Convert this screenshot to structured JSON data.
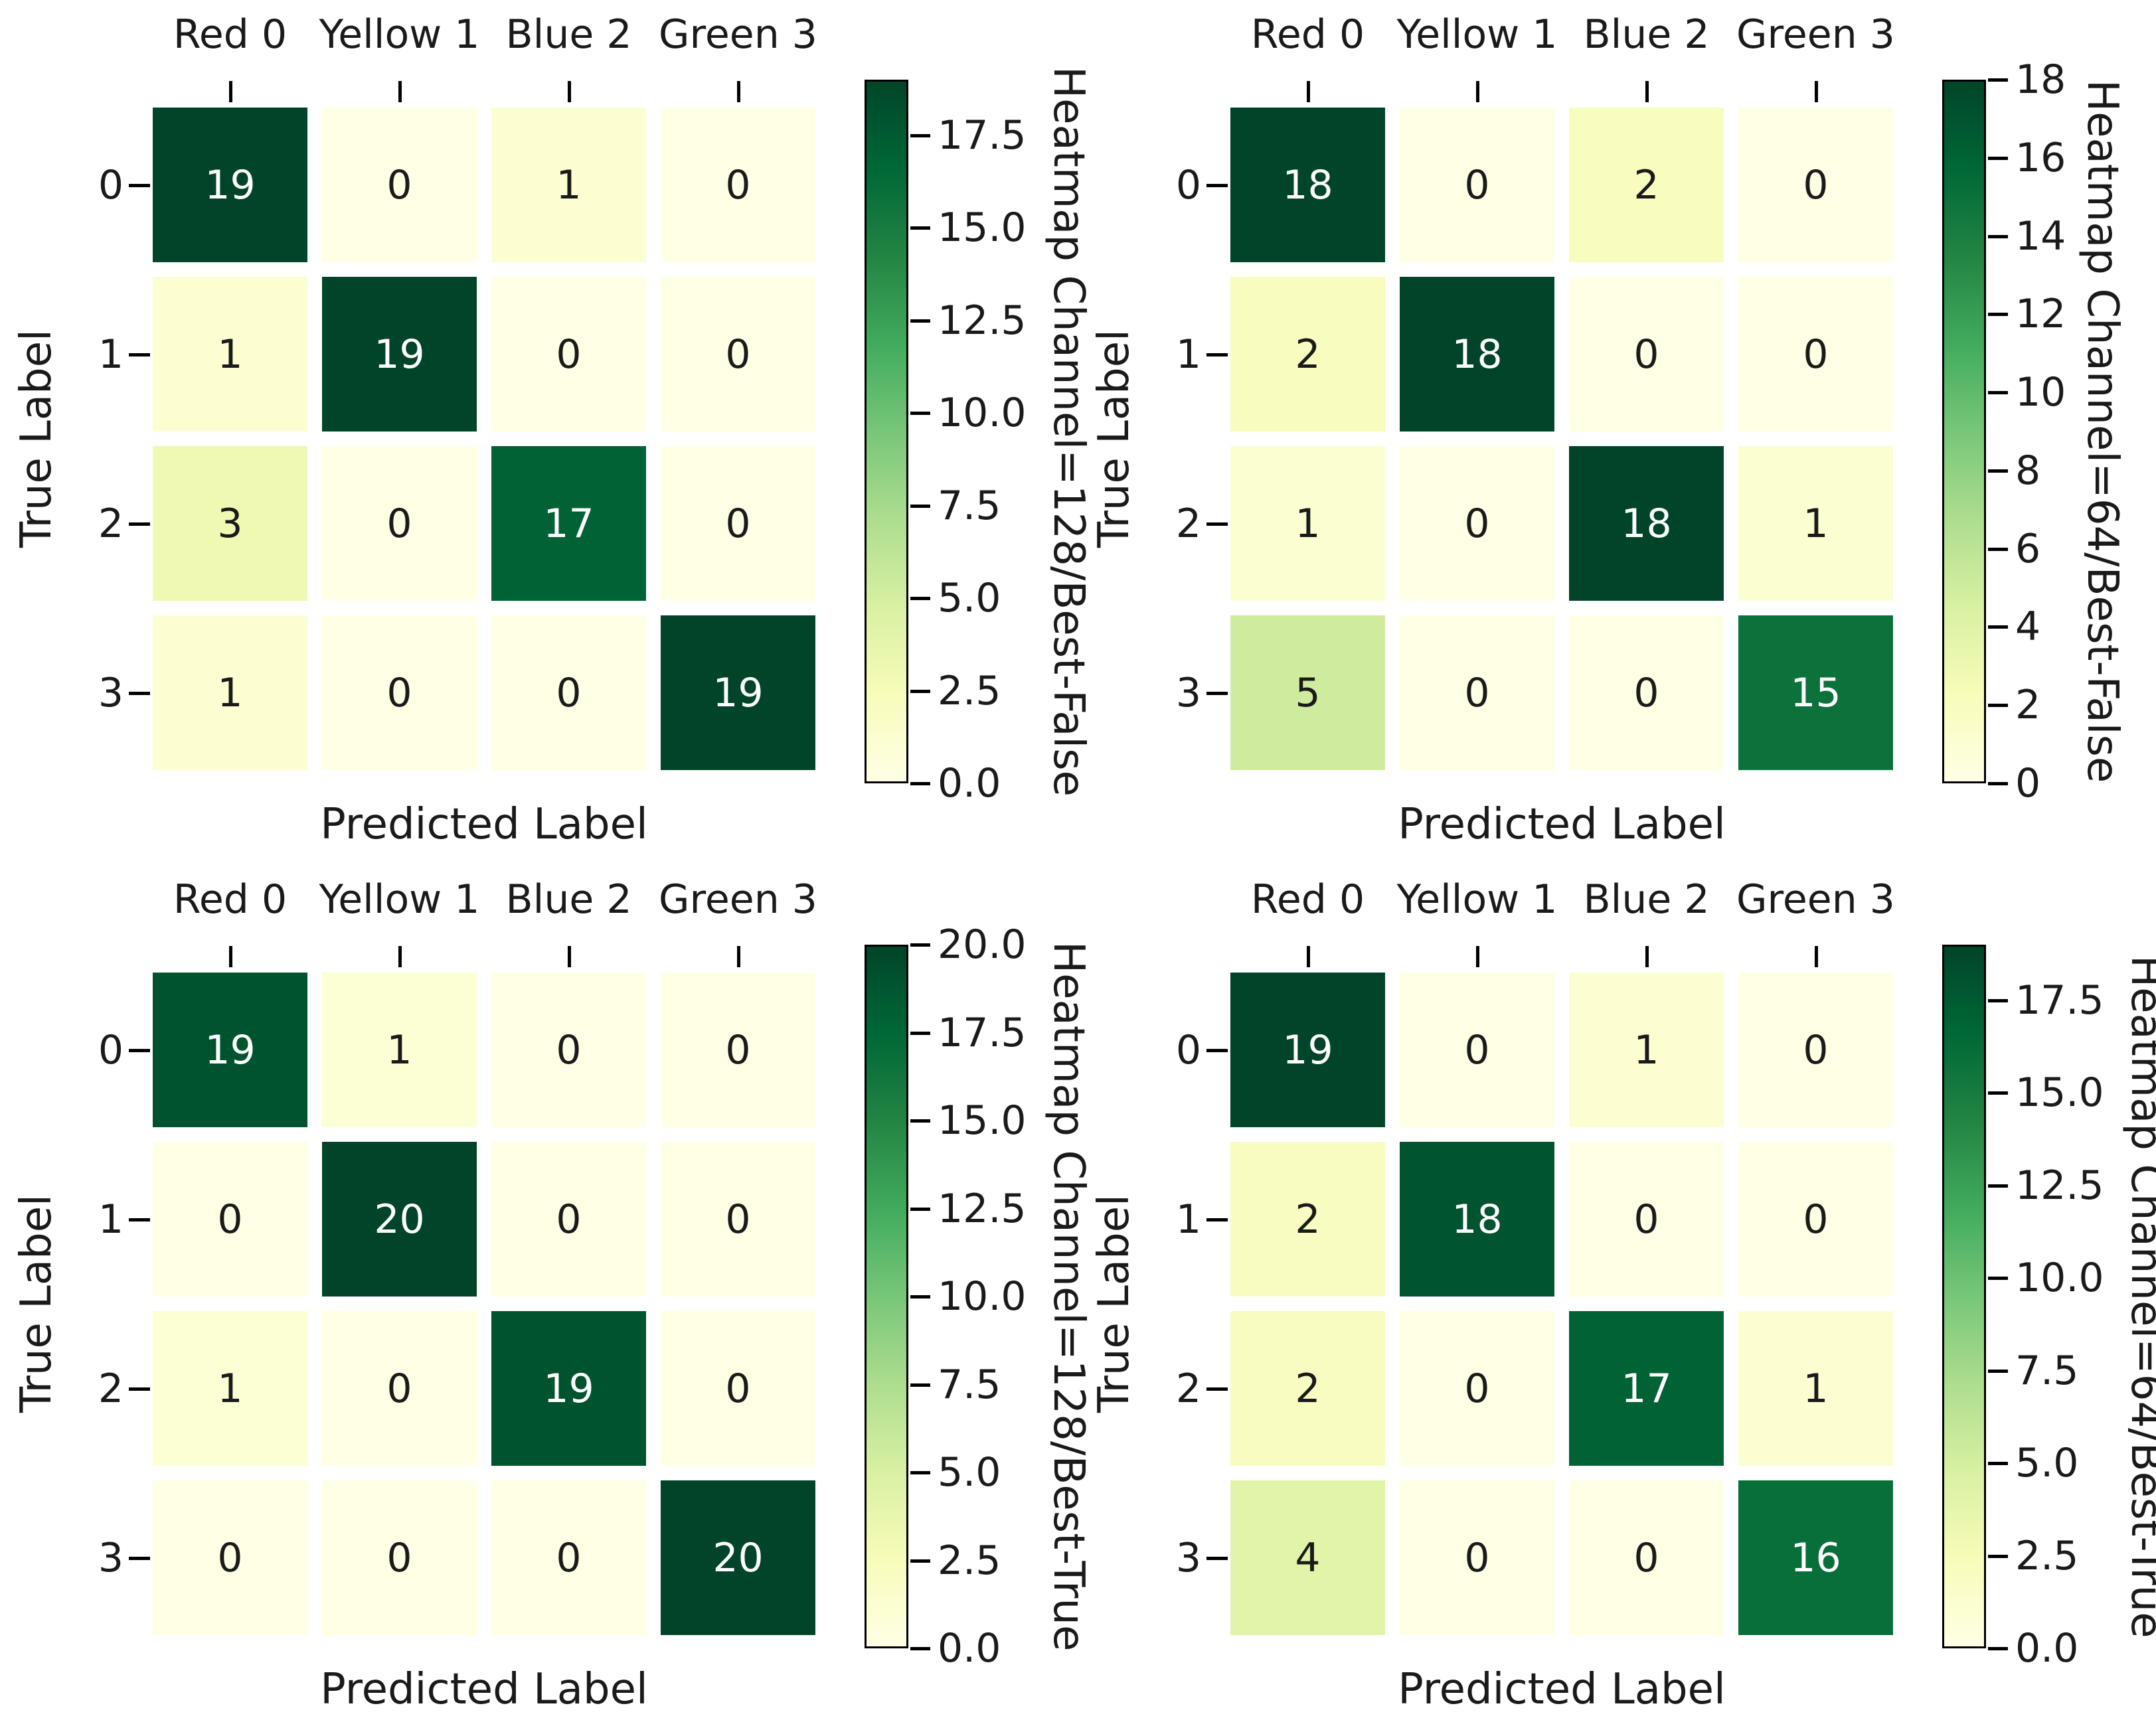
{
  "figure": {
    "xlabel": "Predicted Label",
    "ylabel": "True Label",
    "x_tick_labels": [
      "Red 0",
      "Yellow 1",
      "Blue 2",
      "Green 3"
    ],
    "y_tick_labels": [
      "0",
      "1",
      "2",
      "3"
    ]
  },
  "colors": {
    "background": "#ffffff",
    "colormap": "YlGn",
    "colormap_stops": [
      [
        0.0,
        "#ffffe5"
      ],
      [
        0.125,
        "#f7fcb9"
      ],
      [
        0.25,
        "#d9f0a3"
      ],
      [
        0.375,
        "#addd8e"
      ],
      [
        0.5,
        "#78c679"
      ],
      [
        0.625,
        "#41ab5d"
      ],
      [
        0.75,
        "#238443"
      ],
      [
        0.875,
        "#006837"
      ],
      [
        1.0,
        "#004529"
      ]
    ],
    "annotation_on_dark": "#ffffff",
    "annotation_on_light": "#1a1a1a",
    "axis_text": "#1a1a1a",
    "tick_mark": "#000000"
  },
  "chart_data": [
    {
      "type": "heatmap",
      "position": "top-left",
      "x_tick_labels": [
        "Red 0",
        "Yellow 1",
        "Blue 2",
        "Green 3"
      ],
      "y_tick_labels": [
        "0",
        "1",
        "2",
        "3"
      ],
      "xlabel": "Predicted Label",
      "ylabel": "True Label",
      "colorbar_label": "Heatmap Channel=128/Best-False",
      "values": [
        [
          19,
          0,
          1,
          0
        ],
        [
          1,
          19,
          0,
          0
        ],
        [
          3,
          0,
          17,
          0
        ],
        [
          1,
          0,
          0,
          19
        ]
      ],
      "vmin": 0,
      "vmax": 19,
      "colorbar_ticks": [
        "0.0",
        "2.5",
        "5.0",
        "7.5",
        "10.0",
        "12.5",
        "15.0",
        "17.5"
      ]
    },
    {
      "type": "heatmap",
      "position": "top-right",
      "x_tick_labels": [
        "Red 0",
        "Yellow 1",
        "Blue 2",
        "Green 3"
      ],
      "y_tick_labels": [
        "0",
        "1",
        "2",
        "3"
      ],
      "xlabel": "Predicted Label",
      "ylabel": "True Label",
      "colorbar_label": "Heatmap Channel=64/Best-False",
      "values": [
        [
          18,
          0,
          2,
          0
        ],
        [
          2,
          18,
          0,
          0
        ],
        [
          1,
          0,
          18,
          1
        ],
        [
          5,
          0,
          0,
          15
        ]
      ],
      "vmin": 0,
      "vmax": 18,
      "colorbar_ticks": [
        "0",
        "2",
        "4",
        "6",
        "8",
        "10",
        "12",
        "14",
        "16",
        "18"
      ]
    },
    {
      "type": "heatmap",
      "position": "bottom-left",
      "x_tick_labels": [
        "Red 0",
        "Yellow 1",
        "Blue 2",
        "Green 3"
      ],
      "y_tick_labels": [
        "0",
        "1",
        "2",
        "3"
      ],
      "xlabel": "Predicted Label",
      "ylabel": "True Label",
      "colorbar_label": "Heatmap Channel=128/Best-True",
      "values": [
        [
          19,
          1,
          0,
          0
        ],
        [
          0,
          20,
          0,
          0
        ],
        [
          1,
          0,
          19,
          0
        ],
        [
          0,
          0,
          0,
          20
        ]
      ],
      "vmin": 0,
      "vmax": 20,
      "colorbar_ticks": [
        "0.0",
        "2.5",
        "5.0",
        "7.5",
        "10.0",
        "12.5",
        "15.0",
        "17.5",
        "20.0"
      ]
    },
    {
      "type": "heatmap",
      "position": "bottom-right",
      "x_tick_labels": [
        "Red 0",
        "Yellow 1",
        "Blue 2",
        "Green 3"
      ],
      "y_tick_labels": [
        "0",
        "1",
        "2",
        "3"
      ],
      "xlabel": "Predicted Label",
      "ylabel": "True Label",
      "colorbar_label": "Heatmap Channel=64/Best-True",
      "values": [
        [
          19,
          0,
          1,
          0
        ],
        [
          2,
          18,
          0,
          0
        ],
        [
          2,
          0,
          17,
          1
        ],
        [
          4,
          0,
          0,
          16
        ]
      ],
      "vmin": 0,
      "vmax": 19,
      "colorbar_ticks": [
        "0.0",
        "2.5",
        "5.0",
        "7.5",
        "10.0",
        "12.5",
        "15.0",
        "17.5"
      ]
    }
  ]
}
